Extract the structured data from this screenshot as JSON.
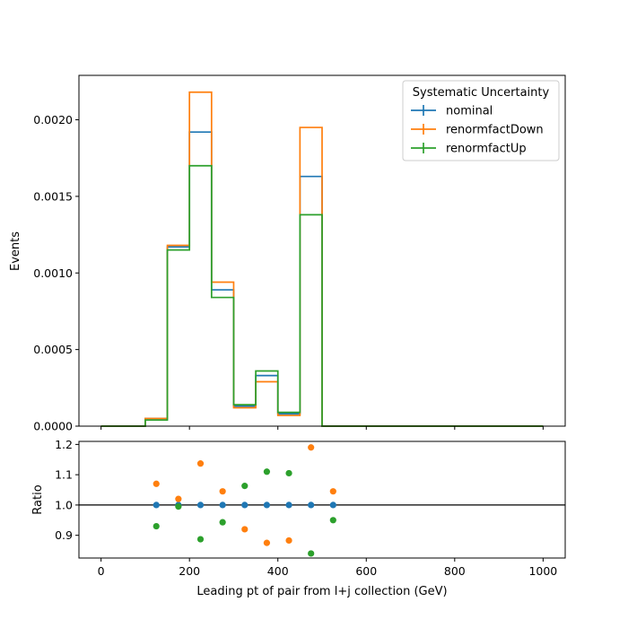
{
  "chart_data": [
    {
      "type": "line",
      "subtype": "step-histogram",
      "xlabel": "",
      "ylabel": "Events",
      "xlim": [
        -50,
        1050
      ],
      "ylim": [
        0,
        0.00229
      ],
      "x_ticks": [
        0,
        200,
        400,
        600,
        800,
        1000
      ],
      "y_ticks": [
        0,
        0.0005,
        0.001,
        0.0015,
        0.002
      ],
      "y_tick_labels": [
        "0.0000",
        "0.0005",
        "0.0010",
        "0.0015",
        "0.0020"
      ],
      "legend": {
        "title": "Systematic Uncertainty",
        "position": "top-right"
      },
      "bin_edges": [
        0,
        50,
        100,
        150,
        200,
        250,
        300,
        350,
        400,
        450,
        500,
        550,
        600,
        650,
        700,
        750,
        800,
        850,
        900,
        950,
        1000
      ],
      "series": [
        {
          "name": "nominal",
          "color": "#1f77b4",
          "values": [
            0,
            0,
            5e-05,
            0.00117,
            0.00192,
            0.00089,
            0.00013,
            0.00033,
            8e-05,
            0.00163,
            0,
            0,
            0,
            0,
            0,
            0,
            0,
            0,
            0,
            0
          ]
        },
        {
          "name": "renormfactDown",
          "color": "#ff7f0e",
          "values": [
            0,
            0,
            5e-05,
            0.00118,
            0.00218,
            0.00094,
            0.00012,
            0.00029,
            7e-05,
            0.00195,
            0,
            0,
            0,
            0,
            0,
            0,
            0,
            0,
            0,
            0
          ]
        },
        {
          "name": "renormfactUp",
          "color": "#2ca02c",
          "values": [
            0,
            0,
            4e-05,
            0.00115,
            0.0017,
            0.00084,
            0.00014,
            0.00036,
            9e-05,
            0.00138,
            0,
            0,
            0,
            0,
            0,
            0,
            0,
            0,
            0,
            0
          ]
        }
      ]
    },
    {
      "type": "scatter",
      "xlabel": "Leading pt of pair from l+j collection (GeV)",
      "ylabel": "Ratio",
      "xlim": [
        -50,
        1050
      ],
      "ylim": [
        0.825,
        1.21
      ],
      "x_ticks": [
        0,
        200,
        400,
        600,
        800,
        1000
      ],
      "y_ticks": [
        0.9,
        1.0,
        1.1,
        1.2
      ],
      "y_tick_labels": [
        "0.9",
        "1.0",
        "1.1",
        "1.2"
      ],
      "reference_line": 1.0,
      "x": [
        125,
        175,
        225,
        275,
        325,
        375,
        425,
        475,
        525
      ],
      "series": [
        {
          "name": "nominal",
          "color": "#1f77b4",
          "values": [
            1.0,
            1.0,
            1.0,
            1.0,
            1.0,
            1.0,
            1.0,
            1.0,
            1.0
          ]
        },
        {
          "name": "renormfactDown",
          "color": "#ff7f0e",
          "values": [
            1.07,
            1.02,
            1.137,
            1.045,
            0.92,
            0.875,
            0.883,
            1.19,
            1.045
          ]
        },
        {
          "name": "renormfactUp",
          "color": "#2ca02c",
          "values": [
            0.93,
            0.995,
            0.887,
            0.943,
            1.063,
            1.11,
            1.105,
            0.84,
            0.95
          ]
        }
      ]
    }
  ]
}
